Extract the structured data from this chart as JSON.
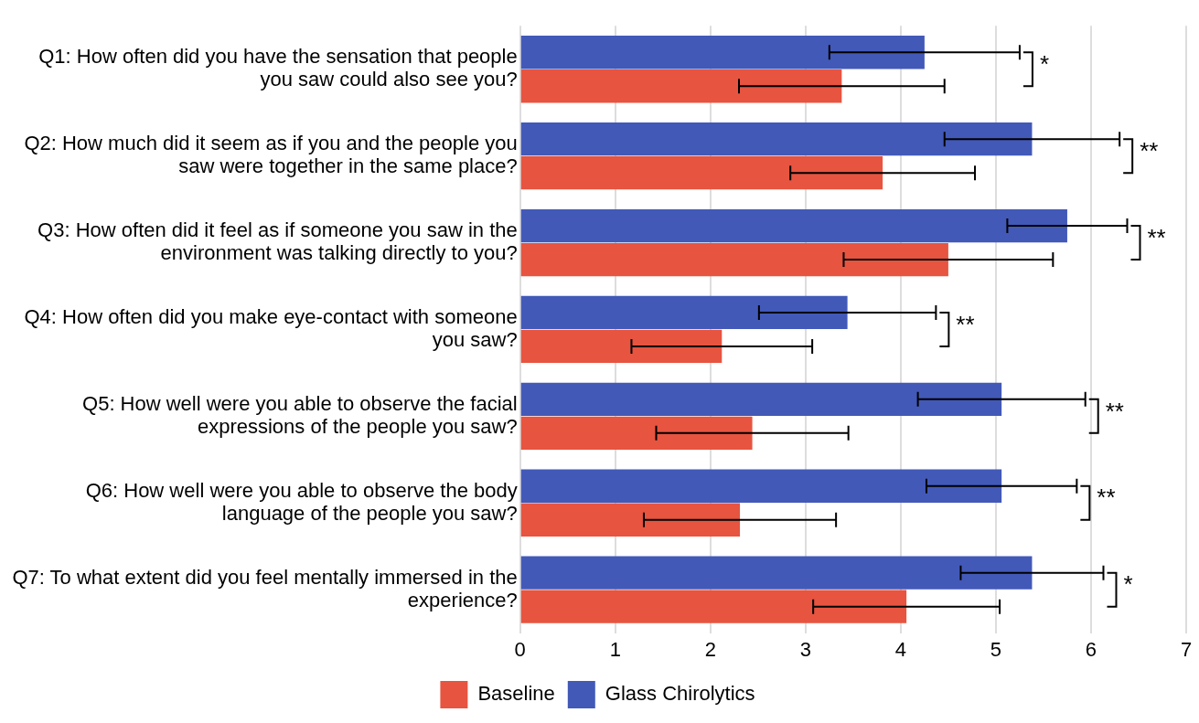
{
  "chart_data": {
    "type": "bar",
    "orientation": "horizontal",
    "categories": [
      "Q1: How often did you have the sensation that people you saw could also see you?",
      "Q2: How much did it seem as if you and the people you saw were together in the same place?",
      "Q3: How often did it feel as if someone you saw in the environment was talking directly to you?",
      "Q4: How often did you make eye-contact with someone you saw?",
      "Q5: How well were you able to observe the facial expressions of the people you saw?",
      "Q6: How well were you able to observe the body language of the people you saw?",
      "Q7: To what extent did you feel mentally immersed in the experience?"
    ],
    "series": [
      {
        "name": "Glass Chirolytics",
        "color": "#4259b8",
        "values": [
          4.25,
          5.38,
          5.75,
          3.44,
          5.06,
          5.06,
          5.38
        ],
        "errors": [
          1.0,
          0.92,
          0.63,
          0.93,
          0.88,
          0.79,
          0.75
        ]
      },
      {
        "name": "Baseline",
        "color": "#e75440",
        "values": [
          3.38,
          3.81,
          4.5,
          2.12,
          2.44,
          2.31,
          4.06
        ],
        "errors": [
          1.08,
          0.97,
          1.1,
          0.95,
          1.01,
          1.01,
          0.98
        ]
      }
    ],
    "xlim": [
      0,
      7
    ],
    "xticks": [
      0,
      1,
      2,
      3,
      4,
      5,
      6,
      7
    ],
    "grid": "x",
    "legend": "bottom",
    "annotations": [
      "*",
      "**",
      "**",
      "**",
      "**",
      "**",
      "*"
    ]
  }
}
